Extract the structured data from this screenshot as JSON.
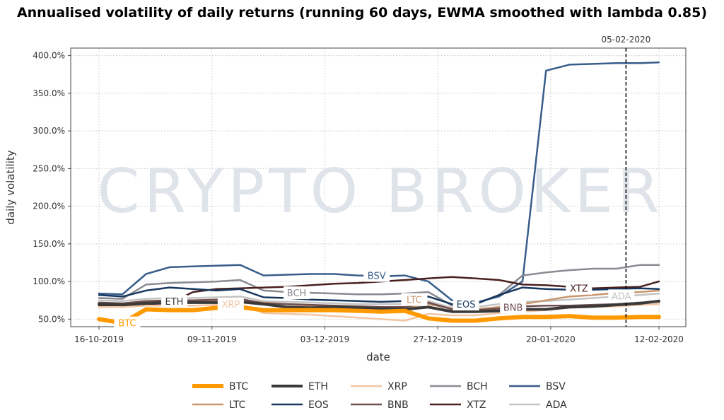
{
  "chart_data": {
    "type": "line",
    "title": "Annualised volatility of daily returns (running 60 days, EWMA smoothed with lambda 0.85)",
    "xlabel": "date",
    "ylabel": "daily volatility",
    "watermark": "CRYPTO BROKER",
    "x_ticks": [
      "16-10-2019",
      "09-11-2019",
      "03-12-2019",
      "27-12-2019",
      "20-01-2020",
      "12-02-2020"
    ],
    "x_range": [
      "2019-10-16",
      "2020-02-12"
    ],
    "y_ticks": [
      "50.0%",
      "100.0%",
      "150.0%",
      "200.0%",
      "250.0%",
      "300.0%",
      "350.0%",
      "400.0%"
    ],
    "ylim": [
      40,
      410
    ],
    "grid": true,
    "vline": {
      "date": "2020-02-05",
      "label": "05-02-2020"
    },
    "legend_position": "bottom",
    "dates": [
      "2019-10-16",
      "2019-10-21",
      "2019-10-26",
      "2019-10-31",
      "2019-11-05",
      "2019-11-10",
      "2019-11-15",
      "2019-11-20",
      "2019-11-25",
      "2019-11-30",
      "2019-12-05",
      "2019-12-10",
      "2019-12-15",
      "2019-12-20",
      "2019-12-25",
      "2019-12-30",
      "2020-01-04",
      "2020-01-09",
      "2020-01-14",
      "2020-01-19",
      "2020-01-24",
      "2020-01-29",
      "2020-02-03",
      "2020-02-08",
      "2020-02-12"
    ],
    "series": [
      {
        "name": "BTC",
        "color": "#ff9900",
        "width": 6,
        "values": [
          50,
          45,
          63,
          62,
          62,
          65,
          66,
          62,
          62,
          62,
          62,
          61,
          60,
          61,
          51,
          48,
          48,
          51,
          53,
          53,
          54,
          52,
          52,
          53,
          53
        ],
        "label": {
          "text": "BTC",
          "date": "2019-10-22",
          "value": 45
        }
      },
      {
        "name": "ETH",
        "color": "#3a3a3a",
        "width": 4,
        "values": [
          70,
          69,
          71,
          72,
          72,
          72,
          73,
          70,
          66,
          65,
          66,
          65,
          64,
          63,
          66,
          60,
          60,
          61,
          63,
          63,
          66,
          67,
          69,
          71,
          74
        ],
        "label": {
          "text": "ETH",
          "date": "2019-11-01",
          "value": 74
        }
      },
      {
        "name": "XRP",
        "color": "#f0c6a4",
        "width": 2.5,
        "values": [
          66,
          66,
          68,
          68,
          68,
          69,
          70,
          58,
          57,
          56,
          54,
          52,
          50,
          48,
          57,
          55,
          55,
          58,
          60,
          62,
          65,
          66,
          67,
          69,
          70
        ],
        "label": {
          "text": "XRP",
          "date": "2019-11-13",
          "value": 70
        }
      },
      {
        "name": "BCH",
        "color": "#8a8a92",
        "width": 2.5,
        "values": [
          78,
          77,
          96,
          98,
          99,
          100,
          102,
          88,
          86,
          85,
          84,
          83,
          83,
          84,
          86,
          68,
          70,
          82,
          108,
          112,
          115,
          117,
          117,
          122,
          122
        ],
        "label": {
          "text": "BCH",
          "date": "2019-11-27",
          "value": 85
        }
      },
      {
        "name": "BSV",
        "color": "#385d8a",
        "width": 2.5,
        "values": [
          84,
          83,
          110,
          119,
          120,
          121,
          122,
          108,
          109,
          110,
          110,
          108,
          107,
          108,
          100,
          75,
          72,
          80,
          100,
          380,
          388,
          389,
          390,
          390,
          391
        ],
        "label": {
          "text": "BSV",
          "date": "2019-12-14",
          "value": 108
        }
      },
      {
        "name": "LTC",
        "color": "#c8956c",
        "width": 2.5,
        "values": [
          70,
          69,
          72,
          73,
          73,
          74,
          75,
          72,
          70,
          68,
          67,
          66,
          65,
          65,
          70,
          64,
          63,
          66,
          70,
          75,
          80,
          82,
          85,
          86,
          88
        ],
        "label": {
          "text": "LTC",
          "date": "2019-12-22",
          "value": 76
        }
      },
      {
        "name": "EOS",
        "color": "#17375e",
        "width": 2.5,
        "values": [
          82,
          80,
          88,
          92,
          90,
          88,
          90,
          79,
          78,
          76,
          75,
          74,
          73,
          74,
          80,
          70,
          70,
          82,
          92,
          90,
          89,
          89,
          90,
          91,
          90
        ],
        "label": {
          "text": "EOS",
          "date": "2020-01-02",
          "value": 70
        }
      },
      {
        "name": "BNB",
        "color": "#6e4e4e",
        "width": 2.5,
        "values": [
          72,
          71,
          74,
          75,
          75,
          76,
          77,
          71,
          70,
          69,
          68,
          67,
          66,
          66,
          72,
          63,
          62,
          64,
          67,
          68,
          68,
          69,
          70,
          72,
          73
        ],
        "label": {
          "text": "BNB",
          "date": "2020-01-12",
          "value": 66
        }
      },
      {
        "name": "XTZ",
        "color": "#4a1f1f",
        "width": 2.5,
        "values": [
          68,
          67,
          70,
          71,
          86,
          90,
          91,
          92,
          93,
          95,
          97,
          98,
          100,
          102,
          104,
          106,
          104,
          102,
          96,
          95,
          93,
          91,
          92,
          93,
          100
        ],
        "label": {
          "text": "XTZ",
          "date": "2020-01-26",
          "value": 91
        }
      },
      {
        "name": "ADA",
        "color": "#c4c4c4",
        "width": 2.5,
        "values": [
          75,
          74,
          77,
          78,
          78,
          79,
          80,
          74,
          73,
          72,
          71,
          70,
          70,
          70,
          74,
          65,
          66,
          70,
          73,
          74,
          76,
          78,
          80,
          82,
          84
        ],
        "label": {
          "text": "ADA",
          "date": "2020-02-04",
          "value": 81
        }
      }
    ]
  }
}
